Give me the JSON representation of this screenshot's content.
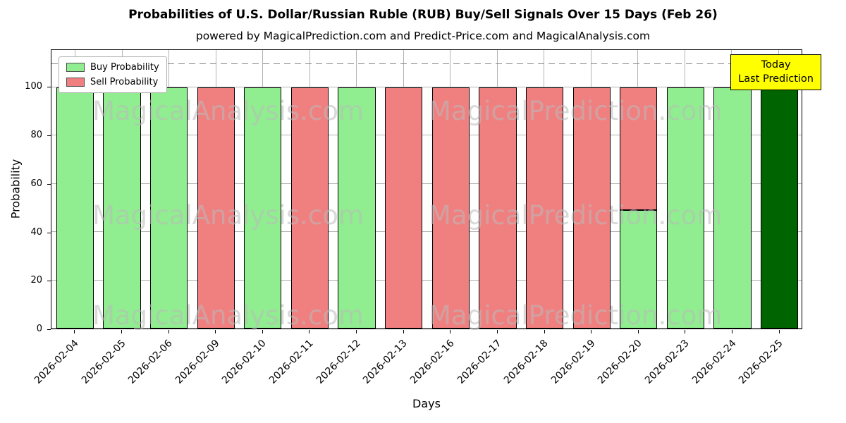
{
  "header": {
    "title": "Probabilities of U.S. Dollar/Russian Ruble (RUB) Buy/Sell Signals Over 15 Days (Feb 26)",
    "subtitle": "powered by MagicalPrediction.com and Predict-Price.com and MagicalAnalysis.com"
  },
  "chart_data": {
    "type": "bar",
    "stacked": true,
    "title": "Probabilities of U.S. Dollar/Russian Ruble (RUB) Buy/Sell Signals Over 15 Days (Feb 26)",
    "xlabel": "Days",
    "ylabel": "Probability",
    "ylim": [
      0,
      115.5
    ],
    "yticks": [
      0,
      20,
      40,
      60,
      80,
      100
    ],
    "dashed_line_y": 110,
    "grid": true,
    "legend_position": "upper-left",
    "categories": [
      "2026-02-04",
      "2026-02-05",
      "2026-02-06",
      "2026-02-09",
      "2026-02-10",
      "2026-02-11",
      "2026-02-12",
      "2026-02-13",
      "2026-02-16",
      "2026-02-17",
      "2026-02-18",
      "2026-02-19",
      "2026-02-20",
      "2026-02-23",
      "2026-02-24",
      "2026-02-25"
    ],
    "series": [
      {
        "name": "Buy Probability",
        "color": "#90EE90",
        "values": [
          100,
          100,
          100,
          0,
          100,
          0,
          100,
          0,
          0,
          0,
          0,
          0,
          49,
          100,
          100,
          100
        ]
      },
      {
        "name": "Sell Probability",
        "color": "#F08080",
        "values": [
          0,
          0,
          0,
          100,
          0,
          100,
          0,
          100,
          100,
          100,
          100,
          100,
          51,
          0,
          0,
          0
        ]
      }
    ],
    "today_bar": {
      "category": "2026-02-25",
      "index": 15,
      "color": "#006400"
    },
    "annotation": {
      "line1": "Today",
      "line2": "Last Prediction",
      "bg_color": "#ffff00"
    },
    "watermark_left": "MagicalAnalysis.com",
    "watermark_right": "MagicalPrediction.com",
    "colors": {
      "grid": "#b3b3b3",
      "axis": "#000000",
      "dashed_line": "#7f7f7f"
    }
  }
}
